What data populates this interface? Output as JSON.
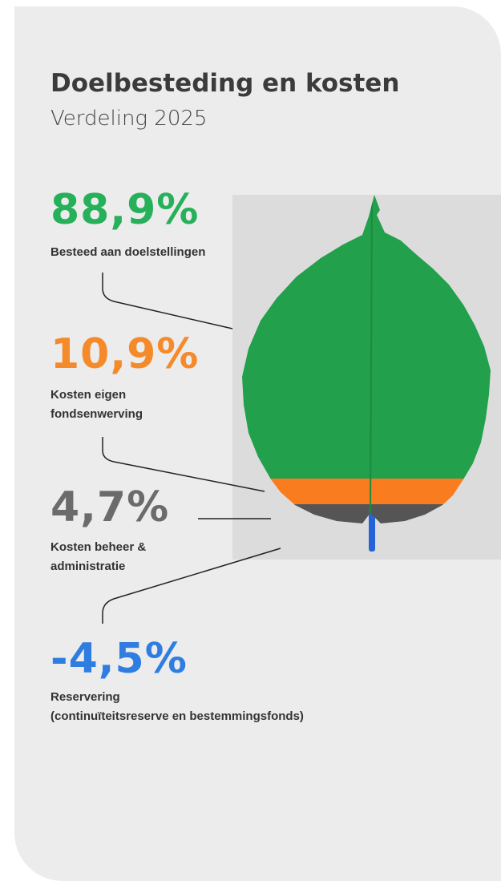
{
  "header": {
    "title": "Doelbesteding en kosten",
    "subtitle": "Verdeling 2025"
  },
  "items": [
    {
      "value": "88,9%",
      "label": [
        "Besteed aan doelstellingen"
      ]
    },
    {
      "value": "10,9%",
      "label": [
        "Kosten eigen",
        "fondsenwerving"
      ]
    },
    {
      "value": "4,7%",
      "label": [
        "Kosten beheer &",
        "administratie"
      ]
    },
    {
      "value": "-4,5%",
      "label": [
        "Reservering",
        "(continuïteitsreserve en bestemmingsfonds)"
      ]
    }
  ]
}
